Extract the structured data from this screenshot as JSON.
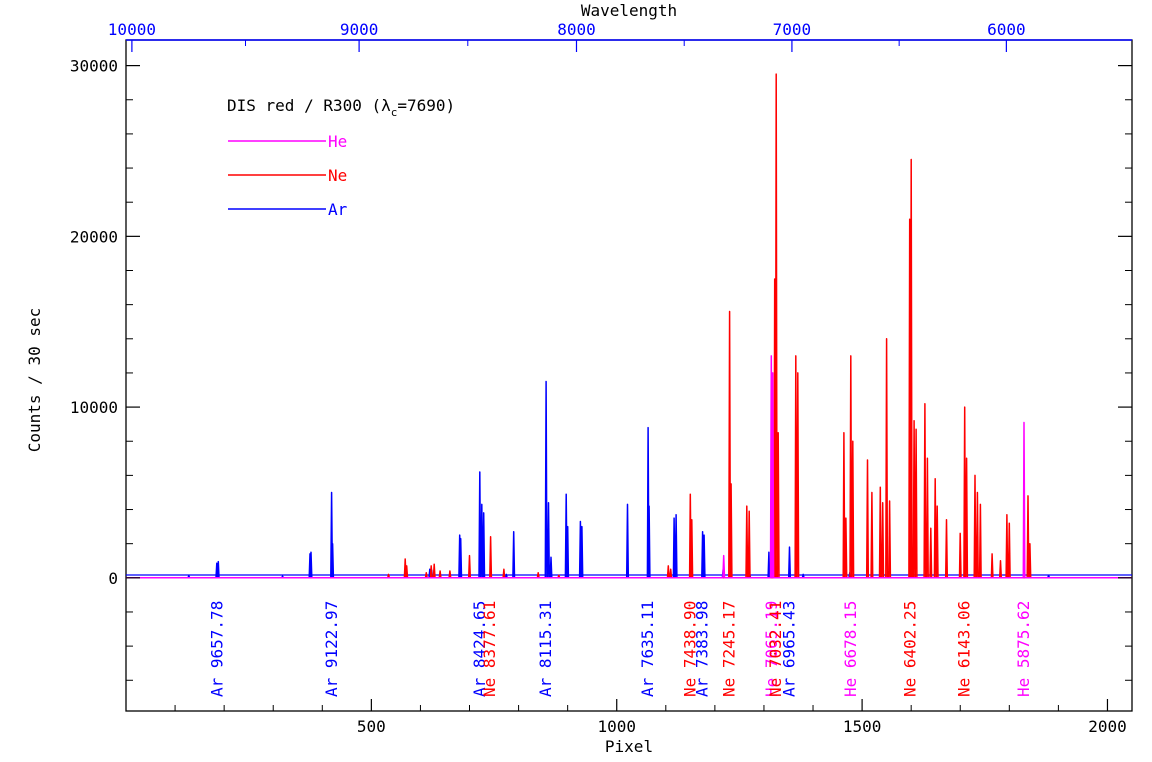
{
  "chart_data": {
    "type": "line",
    "title": "DIS red / R300 (λc=7690)",
    "title_parts": {
      "prefix": "DIS red / R300 (λ",
      "sub": "c",
      "suffix": "=7690)"
    },
    "xlabel": "Pixel",
    "ylabel": "Counts / 30 sec",
    "x2label": "Wavelength",
    "xlim": [
      0,
      2050
    ],
    "ylim": [
      -7800,
      31500
    ],
    "x_ticks": [
      500,
      1000,
      1500,
      2000
    ],
    "y_ticks": [
      0,
      10000,
      20000,
      30000
    ],
    "x2_ticks": [
      {
        "label": "10000",
        "pixel": 12
      },
      {
        "label": "9000",
        "pixel": 475
      },
      {
        "label": "8000",
        "pixel": 918
      },
      {
        "label": "7000",
        "pixel": 1357
      },
      {
        "label": "6000",
        "pixel": 1794
      }
    ],
    "legend": [
      {
        "name": "He",
        "color": "#ff00ff"
      },
      {
        "name": "Ne",
        "color": "#ff0000"
      },
      {
        "name": "Ar",
        "color": "#0000ff"
      }
    ],
    "legend_position": "top-left",
    "series": [
      {
        "name": "Ar",
        "color": "#0000ff",
        "peaks": [
          [
            128,
            120
          ],
          [
            185,
            850
          ],
          [
            188,
            950
          ],
          [
            319,
            100
          ],
          [
            375,
            1400
          ],
          [
            377,
            1500
          ],
          [
            419,
            5000
          ],
          [
            421,
            2000
          ],
          [
            619,
            500
          ],
          [
            623,
            450
          ],
          [
            680,
            2500
          ],
          [
            682,
            2300
          ],
          [
            721,
            6200
          ],
          [
            725,
            4300
          ],
          [
            729,
            3800
          ],
          [
            775,
            200
          ],
          [
            790,
            2700
          ],
          [
            856,
            11500
          ],
          [
            861,
            4400
          ],
          [
            866,
            1200
          ],
          [
            897,
            4900
          ],
          [
            900,
            3000
          ],
          [
            926,
            3300
          ],
          [
            929,
            3000
          ],
          [
            1022,
            4300
          ],
          [
            1064,
            8800
          ],
          [
            1066,
            4200
          ],
          [
            1117,
            3500
          ],
          [
            1121,
            3700
          ],
          [
            1175,
            2700
          ],
          [
            1178,
            2500
          ],
          [
            1217,
            500
          ],
          [
            1271,
            250
          ],
          [
            1310,
            1500
          ],
          [
            1352,
            1800
          ],
          [
            1365,
            600
          ],
          [
            1380,
            200
          ],
          [
            1475,
            300
          ],
          [
            1520,
            250
          ],
          [
            1880,
            150
          ]
        ]
      },
      {
        "name": "Ne",
        "color": "#ff0000",
        "peaks": [
          [
            535,
            200
          ],
          [
            569,
            1100
          ],
          [
            572,
            700
          ],
          [
            612,
            300
          ],
          [
            622,
            700
          ],
          [
            628,
            800
          ],
          [
            640,
            400
          ],
          [
            660,
            400
          ],
          [
            700,
            1300
          ],
          [
            743,
            2400
          ],
          [
            770,
            500
          ],
          [
            840,
            300
          ],
          [
            882,
            150
          ],
          [
            1105,
            700
          ],
          [
            1110,
            500
          ],
          [
            1150,
            4900
          ],
          [
            1153,
            3400
          ],
          [
            1230,
            15600
          ],
          [
            1233,
            5500
          ],
          [
            1265,
            4200
          ],
          [
            1270,
            3900
          ],
          [
            1325,
            29500
          ],
          [
            1322,
            17500
          ],
          [
            1329,
            8500
          ],
          [
            1365,
            13000
          ],
          [
            1369,
            12000
          ],
          [
            1463,
            8500
          ],
          [
            1467,
            3500
          ],
          [
            1477,
            13000
          ],
          [
            1481,
            8000
          ],
          [
            1511,
            6900
          ],
          [
            1520,
            5000
          ],
          [
            1537,
            5300
          ],
          [
            1542,
            4400
          ],
          [
            1550,
            14000
          ],
          [
            1556,
            4500
          ],
          [
            1597,
            21000
          ],
          [
            1600,
            24500
          ],
          [
            1606,
            9200
          ],
          [
            1610,
            8700
          ],
          [
            1628,
            10200
          ],
          [
            1633,
            7000
          ],
          [
            1640,
            2900
          ],
          [
            1649,
            5800
          ],
          [
            1653,
            4200
          ],
          [
            1672,
            3400
          ],
          [
            1700,
            2600
          ],
          [
            1709,
            10000
          ],
          [
            1713,
            7000
          ],
          [
            1730,
            6000
          ],
          [
            1735,
            5000
          ],
          [
            1741,
            4300
          ],
          [
            1765,
            1400
          ],
          [
            1782,
            1000
          ],
          [
            1795,
            3700
          ],
          [
            1800,
            3200
          ],
          [
            1838,
            4800
          ],
          [
            1842,
            2000
          ]
        ]
      },
      {
        "name": "He",
        "color": "#ff00ff",
        "peaks": [
          [
            1218,
            1300
          ],
          [
            1315,
            13000
          ],
          [
            1318,
            12000
          ],
          [
            1830,
            9100
          ]
        ]
      }
    ],
    "annotations": [
      {
        "label": "Ar 9657.78",
        "color": "#0000ff",
        "pixel": 186
      },
      {
        "label": "Ar 9122.97",
        "color": "#0000ff",
        "pixel": 420
      },
      {
        "label": "Ar 8424.65",
        "color": "#0000ff",
        "pixel": 721
      },
      {
        "label": "Ne 8377.61",
        "color": "#ff0000",
        "pixel": 742
      },
      {
        "label": "Ar 8115.31",
        "color": "#0000ff",
        "pixel": 856
      },
      {
        "label": "Ar 7635.11",
        "color": "#0000ff",
        "pixel": 1064
      },
      {
        "label": "Ne 7438.90",
        "color": "#ff0000",
        "pixel": 1150
      },
      {
        "label": "Ar 7383.98",
        "color": "#0000ff",
        "pixel": 1175
      },
      {
        "label": "Ne 7245.17",
        "color": "#ff0000",
        "pixel": 1230
      },
      {
        "label": "He 7065.19",
        "color": "#ff00ff",
        "pixel": 1316
      },
      {
        "label": "Ne 7032.41",
        "color": "#ff0000",
        "pixel": 1325
      },
      {
        "label": "Ar 6965.43",
        "color": "#0000ff",
        "pixel": 1352
      },
      {
        "label": "He 6678.15",
        "color": "#ff00ff",
        "pixel": 1477
      },
      {
        "label": "Ne 6402.25",
        "color": "#ff0000",
        "pixel": 1599
      },
      {
        "label": "Ne 6143.06",
        "color": "#ff0000",
        "pixel": 1709
      },
      {
        "label": "He 5875.62",
        "color": "#ff00ff",
        "pixel": 1830
      }
    ]
  }
}
